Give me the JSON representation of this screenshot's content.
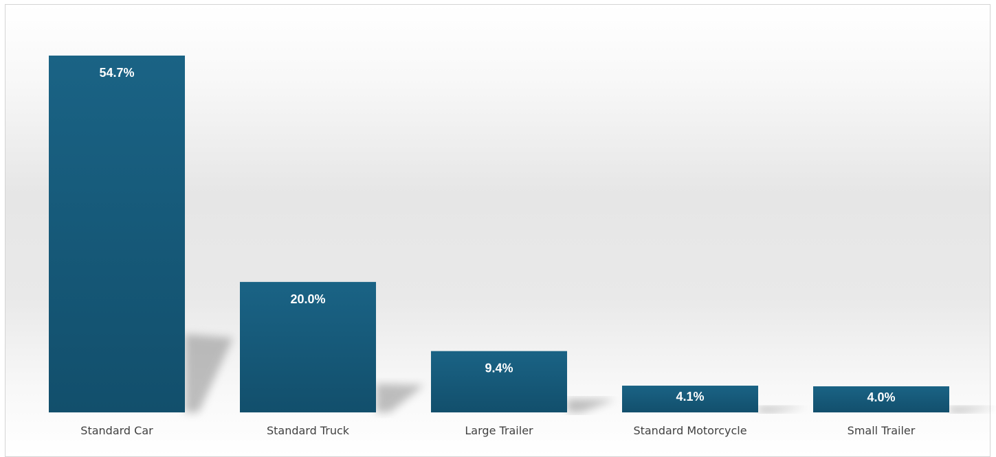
{
  "chart_data": {
    "type": "bar",
    "categories": [
      "Standard Car",
      "Standard Truck",
      "Large Trailer",
      "Standard Motorcycle",
      "Small Trailer"
    ],
    "values": [
      54.7,
      20.0,
      9.4,
      4.1,
      4.0
    ],
    "data_labels": [
      "54.7%",
      "20.0%",
      "9.4%",
      "4.1%",
      "4.0%"
    ],
    "value_unit": "%",
    "title": "",
    "xlabel": "",
    "ylabel": "",
    "ylim": [
      0,
      60
    ],
    "grid": false,
    "legend": "none"
  },
  "colors": {
    "bar_top": "#1a6385",
    "bar_bottom": "#124f6c",
    "label_text": "#ffffff",
    "category_text": "#404040",
    "shadow": "#8c8c8c"
  }
}
